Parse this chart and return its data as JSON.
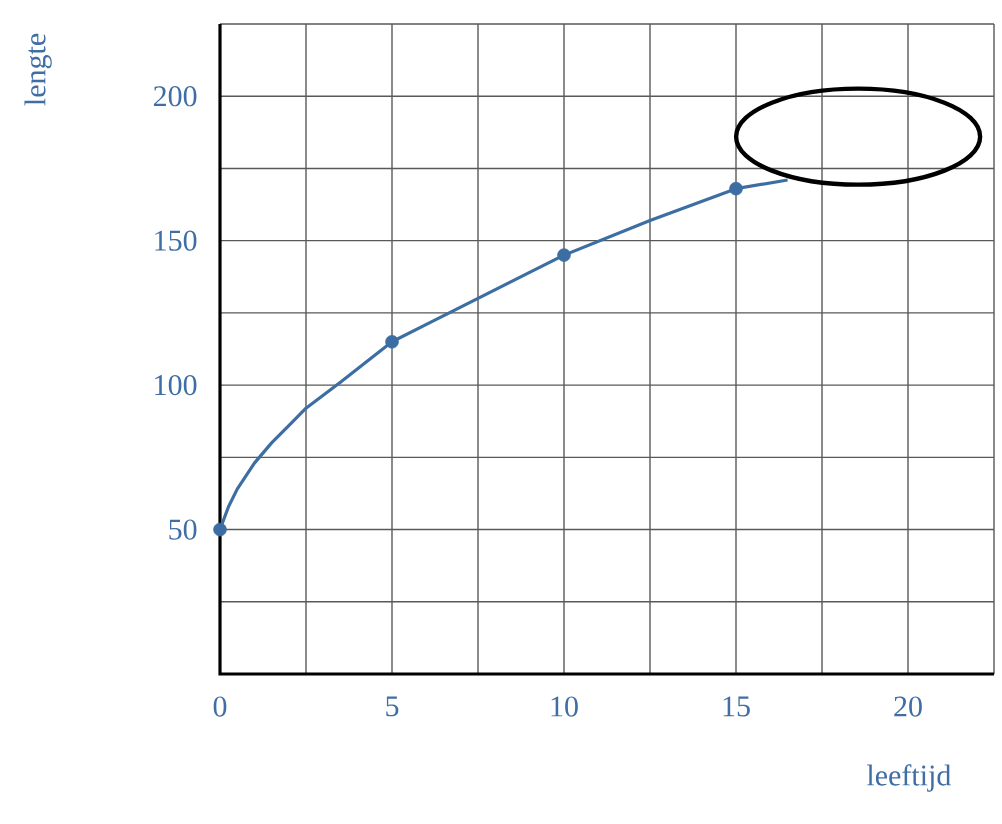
{
  "chart_data": {
    "type": "line",
    "xlabel": "leeftijd",
    "ylabel": "lengte",
    "xlim": [
      0,
      22.5
    ],
    "ylim": [
      0,
      225
    ],
    "xticks": [
      0,
      {
        "value": 2.5,
        "label": null
      },
      5,
      {
        "value": 7.5,
        "label": null
      },
      10,
      {
        "value": 12.5,
        "label": null
      },
      15,
      {
        "value": 17.5,
        "label": null
      },
      20,
      {
        "value": 22.5,
        "label": null
      }
    ],
    "yticks": [
      {
        "value": 0,
        "label": null
      },
      {
        "value": 25,
        "label": null
      },
      50,
      {
        "value": 75,
        "label": null
      },
      100,
      {
        "value": 125,
        "label": null
      },
      150,
      {
        "value": 175,
        "label": null
      },
      200,
      {
        "value": 225,
        "label": null
      }
    ],
    "grid": true,
    "series": [
      {
        "marker": "none",
        "color": "#3c6ea3",
        "x": [
          0,
          0.25,
          0.5,
          1,
          1.5,
          2,
          2.5,
          3.5,
          5,
          6,
          7.5,
          9,
          10,
          12.5,
          15,
          16.5
        ],
        "values": [
          50,
          58,
          64,
          73,
          80,
          86,
          92,
          101,
          115,
          121,
          130,
          139,
          145,
          157,
          168,
          171
        ]
      },
      {
        "type": "scatter",
        "marker": "circle",
        "color": "#3c6ea3",
        "x": [
          0,
          5,
          10,
          15
        ],
        "values": [
          50,
          115,
          145,
          168
        ]
      }
    ]
  }
}
